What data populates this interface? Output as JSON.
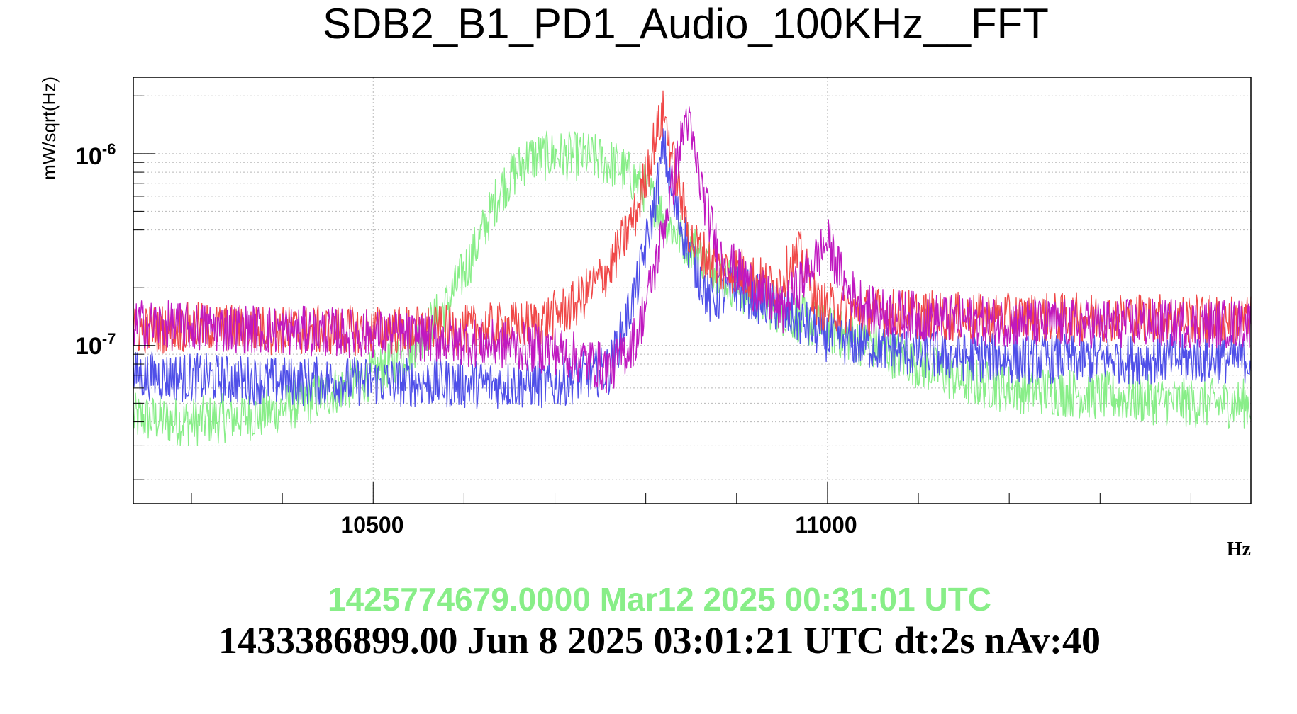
{
  "chart_data": {
    "type": "line",
    "title": "SDB2_B1_PD1_Audio_100KHz__FFT",
    "xlabel": "Hz",
    "ylabel": "mW/sqrt(Hz)",
    "yscale": "log",
    "xlim": [
      10236,
      11466
    ],
    "ylim": [
      1.5e-08,
      2.5e-06
    ],
    "x_ticks": [
      {
        "label": "10500",
        "value": 10500
      },
      {
        "label": "11000",
        "value": 11000
      }
    ],
    "y_ticks": [
      {
        "base": "10",
        "exp": "-6",
        "value": 1e-06
      },
      {
        "base": "10",
        "exp": "-7",
        "value": 1e-07
      }
    ],
    "grid": true,
    "series": [
      {
        "color": "#88ee88",
        "values": [
          [
            10236,
            4.2e-08
          ],
          [
            10300,
            4e-08
          ],
          [
            10380,
            4.4e-08
          ],
          [
            10440,
            5.4e-08
          ],
          [
            10500,
            7e-08
          ],
          [
            10540,
            9.5e-08
          ],
          [
            10580,
            1.6e-07
          ],
          [
            10610,
            3e-07
          ],
          [
            10640,
            6.5e-07
          ],
          [
            10670,
            9.5e-07
          ],
          [
            10700,
            9.8e-07
          ],
          [
            10740,
            9.6e-07
          ],
          [
            10770,
            8.6e-07
          ],
          [
            10800,
            6.5e-07
          ],
          [
            10830,
            4e-07
          ],
          [
            10860,
            3e-07
          ],
          [
            10900,
            2e-07
          ],
          [
            10950,
            1.5e-07
          ],
          [
            11000,
            1.2e-07
          ],
          [
            11050,
            1e-07
          ],
          [
            11100,
            8e-08
          ],
          [
            11150,
            6.5e-08
          ],
          [
            11200,
            6e-08
          ],
          [
            11300,
            5.5e-08
          ],
          [
            11400,
            5e-08
          ],
          [
            11466,
            5e-08
          ]
        ]
      },
      {
        "color": "#4f4fe8",
        "values": [
          [
            10236,
            7e-08
          ],
          [
            10300,
            6.8e-08
          ],
          [
            10400,
            6.5e-08
          ],
          [
            10500,
            6.5e-08
          ],
          [
            10600,
            6.3e-08
          ],
          [
            10700,
            6.3e-08
          ],
          [
            10760,
            7.5e-08
          ],
          [
            10790,
            2e-07
          ],
          [
            10810,
            5.5e-07
          ],
          [
            10820,
            1.1e-06
          ],
          [
            10830,
            5.5e-07
          ],
          [
            10850,
            3e-07
          ],
          [
            10870,
            1.7e-07
          ],
          [
            10900,
            2e-07
          ],
          [
            10950,
            1.5e-07
          ],
          [
            11000,
            1.1e-07
          ],
          [
            11050,
            1e-07
          ],
          [
            11100,
            9e-08
          ],
          [
            11200,
            8.5e-08
          ],
          [
            11300,
            8.5e-08
          ],
          [
            11400,
            8.5e-08
          ],
          [
            11466,
            8.5e-08
          ]
        ]
      },
      {
        "color": "#f04848",
        "values": [
          [
            10236,
            1.2e-07
          ],
          [
            10300,
            1.25e-07
          ],
          [
            10400,
            1.2e-07
          ],
          [
            10500,
            1.2e-07
          ],
          [
            10600,
            1.2e-07
          ],
          [
            10680,
            1.3e-07
          ],
          [
            10720,
            1.6e-07
          ],
          [
            10760,
            2.5e-07
          ],
          [
            10790,
            5e-07
          ],
          [
            10810,
            1.2e-06
          ],
          [
            10820,
            1.65e-06
          ],
          [
            10830,
            9e-07
          ],
          [
            10850,
            3.5e-07
          ],
          [
            10880,
            2.5e-07
          ],
          [
            10900,
            2.5e-07
          ],
          [
            10940,
            2e-07
          ],
          [
            10970,
            3e-07
          ],
          [
            10990,
            1.6e-07
          ],
          [
            11050,
            1.5e-07
          ],
          [
            11150,
            1.4e-07
          ],
          [
            11250,
            1.4e-07
          ],
          [
            11350,
            1.4e-07
          ],
          [
            11466,
            1.35e-07
          ]
        ]
      },
      {
        "color": "#c018c0",
        "values": [
          [
            10236,
            1.3e-07
          ],
          [
            10300,
            1.25e-07
          ],
          [
            10400,
            1.2e-07
          ],
          [
            10500,
            1.15e-07
          ],
          [
            10600,
            1.05e-07
          ],
          [
            10700,
            9.5e-08
          ],
          [
            10760,
            7.5e-08
          ],
          [
            10790,
            1.1e-07
          ],
          [
            10810,
            2.5e-07
          ],
          [
            10830,
            7e-07
          ],
          [
            10845,
            1.6e-06
          ],
          [
            10860,
            7e-07
          ],
          [
            10880,
            3e-07
          ],
          [
            10920,
            2e-07
          ],
          [
            10950,
            1.5e-07
          ],
          [
            10980,
            2.5e-07
          ],
          [
            11000,
            3.5e-07
          ],
          [
            11020,
            2e-07
          ],
          [
            11050,
            1.5e-07
          ],
          [
            11150,
            1.35e-07
          ],
          [
            11250,
            1.3e-07
          ],
          [
            11350,
            1.3e-07
          ],
          [
            11466,
            1.3e-07
          ]
        ]
      }
    ]
  },
  "footer": {
    "reference_line": "1425774679.0000 Mar12 2025 00:31:01 UTC",
    "reference_color": "#88ee88",
    "current_line": "1433386899.00 Jun 8 2025 03:01:21 UTC dt:2s nAv:40",
    "current_color": "#000000"
  }
}
